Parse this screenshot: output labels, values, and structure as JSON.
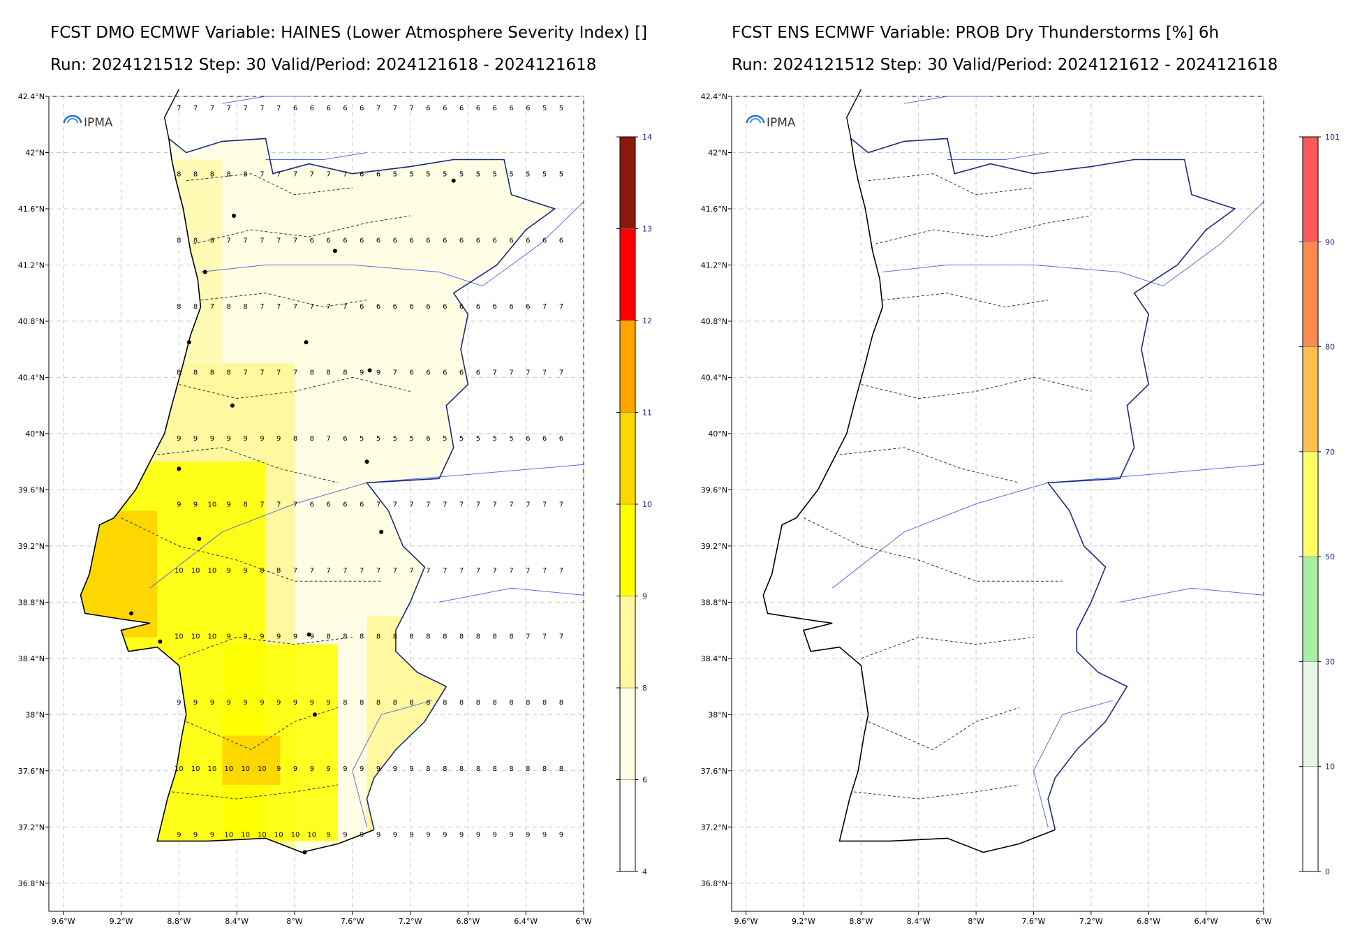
{
  "left": {
    "title_line1": "FCST DMO ECMWF Variable: HAINES (Lower Atmosphere Severity Index) []",
    "title_line2": "Run: 2024121512 Step: 30 Valid/Period: 2024121618 - 2024121618",
    "logo_text": "IPMA",
    "lat_ticks": [
      "42.4°N",
      "42°N",
      "41.6°N",
      "41.2°N",
      "40.8°N",
      "40.4°N",
      "40°N",
      "39.6°N",
      "39.2°N",
      "38.8°N",
      "38.4°N",
      "38°N",
      "37.6°N",
      "37.2°N",
      "36.8°N"
    ],
    "lon_ticks": [
      "9.6°W",
      "9.2°W",
      "8.8°W",
      "8.4°W",
      "8°W",
      "7.6°W",
      "7.2°W",
      "6.8°W",
      "6.4°W",
      "6°W"
    ],
    "colorbar": {
      "labels": [
        "4",
        "6",
        "8",
        "9",
        "10",
        "11",
        "12",
        "13",
        "14"
      ],
      "colors": [
        "#ffffff",
        "#fffde4",
        "#fff8a0",
        "#ffff00",
        "#ffd700",
        "#ffa500",
        "#ff0000",
        "#8b1a0a"
      ]
    },
    "grid_sample": {
      "rows": [
        [
          "7",
          "7",
          "7",
          "7",
          "7",
          "7",
          "7",
          "6",
          "6",
          "6",
          "6",
          "6",
          "7",
          "7",
          "7",
          "6",
          "6",
          "6",
          "6",
          "6",
          "6",
          "6",
          "5",
          "5"
        ],
        [
          "8",
          "8",
          "8",
          "8",
          "8",
          "7",
          "7",
          "7",
          "7",
          "7",
          "7",
          "6",
          "6",
          "5",
          "5",
          "5",
          "5",
          "5",
          "5",
          "5",
          "5",
          "5",
          "5",
          "5"
        ],
        [
          "8",
          "8",
          "8",
          "7",
          "7",
          "7",
          "7",
          "7",
          "6",
          "6",
          "6",
          "6",
          "6",
          "6",
          "6",
          "6",
          "6",
          "6",
          "6",
          "6",
          "6",
          "6",
          "6",
          "6"
        ],
        [
          "8",
          "8",
          "7",
          "8",
          "8",
          "7",
          "7",
          "7",
          "7",
          "7",
          "7",
          "6",
          "6",
          "6",
          "6",
          "6",
          "6",
          "6",
          "6",
          "6",
          "6",
          "6",
          "7",
          "7"
        ],
        [
          "8",
          "8",
          "8",
          "8",
          "7",
          "7",
          "7",
          "7",
          "8",
          "8",
          "8",
          "9",
          "9",
          "7",
          "6",
          "6",
          "6",
          "6",
          "6",
          "7",
          "7",
          "7",
          "7",
          "7"
        ],
        [
          "9",
          "9",
          "9",
          "9",
          "9",
          "9",
          "9",
          "8",
          "8",
          "7",
          "6",
          "5",
          "5",
          "5",
          "5",
          "6",
          "5",
          "5",
          "5",
          "5",
          "5",
          "6",
          "6",
          "6"
        ],
        [
          "9",
          "9",
          "10",
          "9",
          "8",
          "7",
          "7",
          "7",
          "6",
          "6",
          "6",
          "6",
          "7",
          "7",
          "7",
          "7",
          "7",
          "7",
          "7",
          "7",
          "7",
          "7",
          "7",
          "7"
        ],
        [
          "10",
          "10",
          "10",
          "9",
          "9",
          "8",
          "8",
          "7",
          "7",
          "7",
          "7",
          "7",
          "7",
          "7",
          "7",
          "7",
          "7",
          "7",
          "7",
          "7",
          "7",
          "7",
          "7",
          "7"
        ],
        [
          "10",
          "10",
          "10",
          "9",
          "9",
          "9",
          "9",
          "9",
          "9",
          "8",
          "8",
          "8",
          "8",
          "8",
          "8",
          "8",
          "8",
          "8",
          "8",
          "8",
          "8",
          "7",
          "7",
          "7"
        ],
        [
          "9",
          "9",
          "9",
          "9",
          "9",
          "9",
          "9",
          "9",
          "9",
          "9",
          "8",
          "8",
          "8",
          "8",
          "8",
          "8",
          "8",
          "8",
          "8",
          "8",
          "8",
          "8",
          "8",
          "8"
        ],
        [
          "10",
          "10",
          "10",
          "10",
          "10",
          "10",
          "9",
          "9",
          "9",
          "9",
          "9",
          "9",
          "9",
          "9",
          "9",
          "8",
          "8",
          "8",
          "8",
          "8",
          "8",
          "8",
          "8",
          "8"
        ],
        [
          "9",
          "9",
          "9",
          "10",
          "10",
          "10",
          "10",
          "10",
          "10",
          "9",
          "9",
          "9",
          "9",
          "9",
          "9",
          "9",
          "9",
          "9",
          "9",
          "9",
          "9",
          "9",
          "9",
          "9"
        ]
      ]
    }
  },
  "right": {
    "title_line1": "FCST ENS ECMWF Variable: PROB Dry Thunderstorms [%] 6h",
    "title_line2": "Run: 2024121512 Step: 30 Valid/Period: 2024121612 - 2024121618",
    "logo_text": "IPMA",
    "lat_ticks": [
      "42.4°N",
      "42°N",
      "41.6°N",
      "41.2°N",
      "40.8°N",
      "40.4°N",
      "40°N",
      "39.6°N",
      "39.2°N",
      "38.8°N",
      "38.4°N",
      "38°N",
      "37.6°N",
      "37.2°N",
      "36.8°N"
    ],
    "lon_ticks": [
      "9.6°W",
      "9.2°W",
      "8.8°W",
      "8.4°W",
      "8°W",
      "7.6°W",
      "7.2°W",
      "6.8°W",
      "6.4°W",
      "6°W"
    ],
    "colorbar": {
      "labels": [
        "0",
        "10",
        "30",
        "50",
        "70",
        "80",
        "90",
        "101"
      ],
      "colors": [
        "#ffffff",
        "#e8f6e8",
        "#a6f0a6",
        "#ffff66",
        "#ffc04d",
        "#ff8a4d",
        "#ff5a5a"
      ]
    }
  }
}
